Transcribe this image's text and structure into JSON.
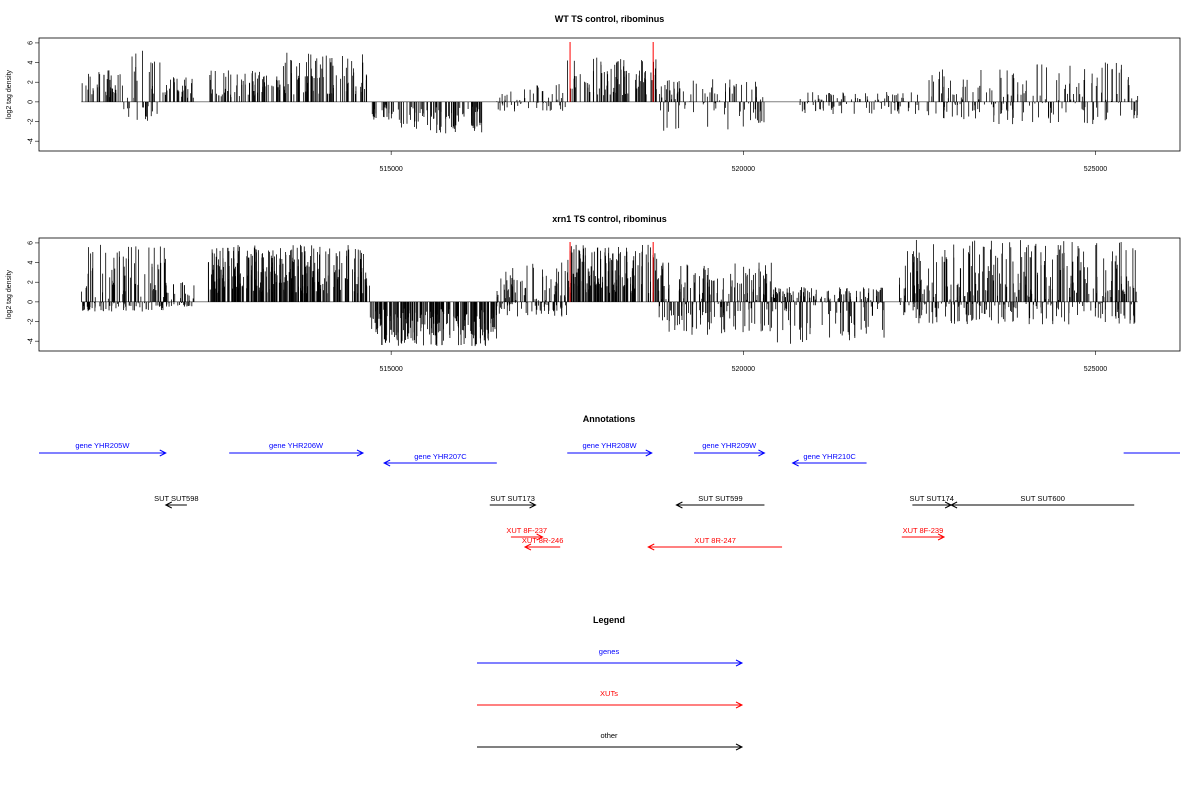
{
  "chart_data": [
    {
      "type": "bar",
      "title": "WT TS control, ribominus",
      "xlabel": "",
      "ylabel": "log2 tag density",
      "xlim": [
        510000,
        526200
      ],
      "ylim": [
        -5,
        6.5
      ],
      "xticks": [
        515000,
        520000,
        525000
      ],
      "xtick_labels": [
        "515000",
        "520000",
        "525000"
      ],
      "yticks": [
        -4,
        -2,
        0,
        2,
        4,
        6
      ],
      "ytick_labels": [
        "-4",
        "-2",
        "0",
        "2",
        "4",
        "6"
      ],
      "grid": false,
      "highlight_positions": [
        517540,
        518720
      ],
      "highlight_color": "#ff0000",
      "profile_note": "dense per-position signal; approximated by region envelopes",
      "regions": [
        {
          "start": 510600,
          "end": 511200,
          "min": 0,
          "max": 3.2
        },
        {
          "start": 511200,
          "end": 511800,
          "min": -2.3,
          "max": 5.2
        },
        {
          "start": 511800,
          "end": 512200,
          "min": 0,
          "max": 2.5
        },
        {
          "start": 512400,
          "end": 513400,
          "min": 0,
          "max": 3.2
        },
        {
          "start": 513400,
          "end": 514700,
          "min": 0,
          "max": 5.0
        },
        {
          "start": 514700,
          "end": 515000,
          "min": -1.8,
          "max": 0
        },
        {
          "start": 515000,
          "end": 516300,
          "min": -3.2,
          "max": 0
        },
        {
          "start": 516500,
          "end": 517500,
          "min": -1.0,
          "max": 1.8
        },
        {
          "start": 517500,
          "end": 518800,
          "min": 0,
          "max": 4.5
        },
        {
          "start": 518800,
          "end": 520300,
          "min": -3.0,
          "max": 2.3
        },
        {
          "start": 520800,
          "end": 522500,
          "min": -1.3,
          "max": 1.0
        },
        {
          "start": 522600,
          "end": 523500,
          "min": -1.8,
          "max": 3.3
        },
        {
          "start": 523500,
          "end": 525600,
          "min": -2.3,
          "max": 4.0
        }
      ]
    },
    {
      "type": "bar",
      "title": "xrn1 TS control, ribominus",
      "xlabel": "",
      "ylabel": "log2 tag density",
      "xlim": [
        510000,
        526200
      ],
      "ylim": [
        -5,
        6.5
      ],
      "xticks": [
        515000,
        520000,
        525000
      ],
      "xtick_labels": [
        "515000",
        "520000",
        "525000"
      ],
      "yticks": [
        -4,
        -2,
        0,
        2,
        4,
        6
      ],
      "ytick_labels": [
        "-4",
        "-2",
        "0",
        "2",
        "4",
        "6"
      ],
      "grid": false,
      "highlight_positions": [
        517540,
        518720
      ],
      "highlight_color": "#ff0000",
      "profile_note": "dense per-position signal; approximated by region envelopes",
      "regions": [
        {
          "start": 510600,
          "end": 511800,
          "min": -1.0,
          "max": 5.8
        },
        {
          "start": 511800,
          "end": 512200,
          "min": -0.5,
          "max": 2.0
        },
        {
          "start": 512400,
          "end": 514700,
          "min": 0,
          "max": 5.8
        },
        {
          "start": 514700,
          "end": 516500,
          "min": -4.5,
          "max": 0
        },
        {
          "start": 516500,
          "end": 517500,
          "min": -1.5,
          "max": 4.0
        },
        {
          "start": 517500,
          "end": 518800,
          "min": 0,
          "max": 5.8
        },
        {
          "start": 518800,
          "end": 520400,
          "min": -3.5,
          "max": 4.0
        },
        {
          "start": 520400,
          "end": 522000,
          "min": -4.3,
          "max": 1.5
        },
        {
          "start": 522200,
          "end": 525600,
          "min": -2.3,
          "max": 6.3
        }
      ]
    },
    {
      "type": "annotation_track",
      "title": "Annotations",
      "xlim": [
        510000,
        526200
      ],
      "features": [
        {
          "label": "gene YHR205W",
          "start": 510000,
          "end": 511800,
          "strand": "+",
          "color": "#0000ff",
          "row": 0
        },
        {
          "label": "gene YHR206W",
          "start": 512700,
          "end": 514600,
          "strand": "+",
          "color": "#0000ff",
          "row": 0
        },
        {
          "label": "gene YHR207C",
          "start": 514900,
          "end": 516500,
          "strand": "-",
          "color": "#0000ff",
          "row": 1
        },
        {
          "label": "gene YHR208W",
          "start": 517500,
          "end": 518700,
          "strand": "+",
          "color": "#0000ff",
          "row": 0
        },
        {
          "label": "gene YHR209W",
          "start": 519300,
          "end": 520300,
          "strand": "+",
          "color": "#0000ff",
          "row": 0
        },
        {
          "label": "gene YHR210C",
          "start": 520700,
          "end": 521750,
          "strand": "-",
          "color": "#0000ff",
          "row": 1
        },
        {
          "label": "",
          "start": 525400,
          "end": 526200,
          "strand": "none",
          "color": "#0000ff",
          "row": 0
        },
        {
          "label": "SUT SUT598",
          "start": 511800,
          "end": 512100,
          "strand": "-",
          "color": "#000000",
          "row": 2
        },
        {
          "label": "SUT SUT173",
          "start": 516400,
          "end": 517050,
          "strand": "+",
          "color": "#000000",
          "row": 2
        },
        {
          "label": "SUT SUT599",
          "start": 519050,
          "end": 520300,
          "strand": "-",
          "color": "#000000",
          "row": 2
        },
        {
          "label": "SUT SUT174",
          "start": 522400,
          "end": 522950,
          "strand": "+",
          "color": "#000000",
          "row": 2
        },
        {
          "label": "SUT SUT600",
          "start": 522950,
          "end": 525550,
          "strand": "-",
          "color": "#000000",
          "row": 2
        },
        {
          "label": "XUT 8F-237",
          "start": 516700,
          "end": 517150,
          "strand": "+",
          "color": "#ff0000",
          "row": 3
        },
        {
          "label": "XUT 8R-246",
          "start": 516900,
          "end": 517400,
          "strand": "-",
          "color": "#ff0000",
          "row": 4
        },
        {
          "label": "XUT 8R-247",
          "start": 518650,
          "end": 520550,
          "strand": "-",
          "color": "#ff0000",
          "row": 4
        },
        {
          "label": "XUT 8F-239",
          "start": 522250,
          "end": 522850,
          "strand": "+",
          "color": "#ff0000",
          "row": 3
        }
      ]
    },
    {
      "type": "legend",
      "title": "Legend",
      "entries": [
        {
          "label": "genes",
          "color": "#0000ff"
        },
        {
          "label": "XUTs",
          "color": "#ff0000"
        },
        {
          "label": "other",
          "color": "#000000"
        }
      ]
    }
  ]
}
